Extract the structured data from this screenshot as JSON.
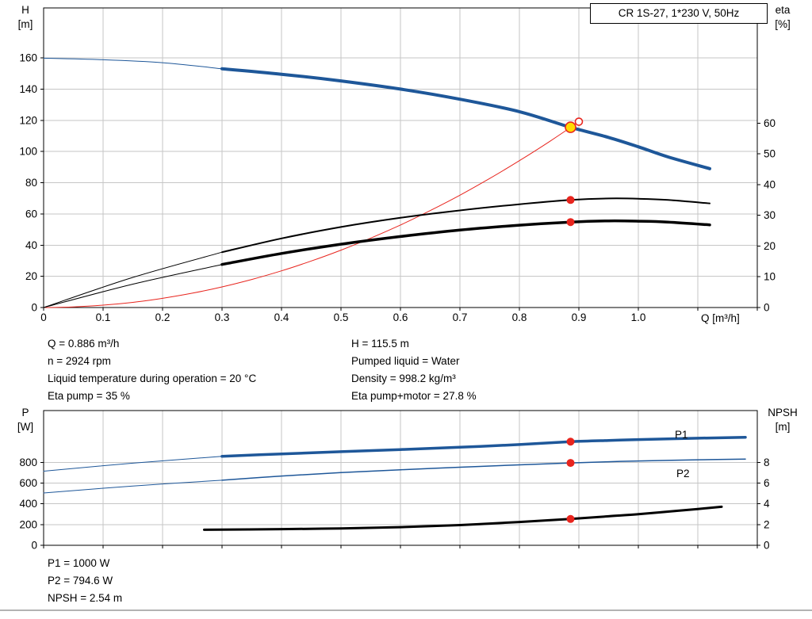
{
  "title_box": {
    "label": "CR 1S-27, 1*230 V, 50Hz"
  },
  "info_top": {
    "left": [
      "Q = 0.886 m³/h",
      "n = 2924 rpm",
      "Liquid temperature during operation = 20 °C",
      "Eta pump = 35 %"
    ],
    "right": [
      "H = 115.5 m",
      "Pumped liquid = Water",
      "Density = 998.2 kg/m³",
      "Eta pump+motor = 27.8 %"
    ]
  },
  "info_bottom": [
    "P1 = 1000 W",
    "P2 = 794.6 W",
    "NPSH = 2.54 m"
  ],
  "colors": {
    "curve_blue": "#1e5799",
    "curve_red": "#e8251e",
    "curve_black": "#000000",
    "marker_yellow": "#ffdb00",
    "grid": "#c6c6c6",
    "frame": "#000000"
  },
  "chart_data": [
    {
      "type": "line",
      "panel": "top",
      "title": "CR 1S-27, 1*230 V, 50Hz",
      "x": {
        "label": "Q [m³/h]",
        "min": 0,
        "max": 1.2,
        "tick_step": 0.1,
        "tick_labels": [
          "0",
          "0.1",
          "0.2",
          "0.3",
          "0.4",
          "0.5",
          "0.6",
          "0.7",
          "0.8",
          "0.9",
          "1.0"
        ]
      },
      "y_left": {
        "title": "H",
        "unit": "[m]",
        "min": 0,
        "max": 192,
        "ticks": [
          0,
          20,
          40,
          60,
          80,
          100,
          120,
          140,
          160
        ]
      },
      "y_right": {
        "title": "eta",
        "unit": "[%]",
        "min": 0,
        "max": 97.5,
        "ticks": [
          0,
          10,
          20,
          30,
          40,
          50,
          60
        ]
      },
      "duty_point": {
        "q": 0.886,
        "h": 115.5,
        "eta_pump": 35,
        "eta_pump_motor": 27.8
      },
      "series": [
        {
          "name": "system-curve",
          "axis": "left",
          "color": "#e8251e",
          "width": 1,
          "points": [
            [
              0,
              0
            ],
            [
              0.05,
              0.4
            ],
            [
              0.1,
              1.5
            ],
            [
              0.15,
              3.3
            ],
            [
              0.2,
              5.9
            ],
            [
              0.25,
              9.2
            ],
            [
              0.3,
              13.2
            ],
            [
              0.35,
              18
            ],
            [
              0.4,
              23.5
            ],
            [
              0.45,
              29.8
            ],
            [
              0.5,
              36.8
            ],
            [
              0.55,
              44.5
            ],
            [
              0.6,
              52.9
            ],
            [
              0.65,
              62.1
            ],
            [
              0.7,
              72
            ],
            [
              0.75,
              82.7
            ],
            [
              0.8,
              94.1
            ],
            [
              0.85,
              106.2
            ],
            [
              0.9,
              119.1
            ]
          ]
        },
        {
          "name": "eta-pump-lowflow",
          "axis": "right",
          "color": "#000000",
          "width": 1,
          "points": [
            [
              0,
              0
            ],
            [
              0.15,
              9.8
            ],
            [
              0.3,
              18
            ]
          ]
        },
        {
          "name": "eta-pump-motor-lowflow",
          "axis": "right",
          "color": "#000000",
          "width": 1,
          "points": [
            [
              0,
              0
            ],
            [
              0.15,
              7.6
            ],
            [
              0.3,
              14
            ]
          ]
        },
        {
          "name": "eta-pump",
          "axis": "right",
          "color": "#000000",
          "width": 2,
          "points": [
            [
              0.3,
              18
            ],
            [
              0.4,
              22.5
            ],
            [
              0.5,
              26.2
            ],
            [
              0.6,
              29.2
            ],
            [
              0.7,
              31.6
            ],
            [
              0.8,
              33.6
            ],
            [
              0.886,
              35
            ],
            [
              0.95,
              35.5
            ],
            [
              1,
              35.4
            ],
            [
              1.05,
              35
            ],
            [
              1.12,
              33.9
            ]
          ]
        },
        {
          "name": "eta-pump-motor",
          "axis": "right",
          "color": "#000000",
          "width": 3.5,
          "points": [
            [
              0.3,
              14
            ],
            [
              0.4,
              17.6
            ],
            [
              0.5,
              20.6
            ],
            [
              0.6,
              23.1
            ],
            [
              0.7,
              25.2
            ],
            [
              0.8,
              26.8
            ],
            [
              0.886,
              27.8
            ],
            [
              0.95,
              28.2
            ],
            [
              1,
              28.1
            ],
            [
              1.05,
              27.8
            ],
            [
              1.12,
              26.9
            ]
          ]
        },
        {
          "name": "head-curve-lowflow",
          "axis": "left",
          "color": "#1e5799",
          "width": 1,
          "points": [
            [
              0,
              159.8
            ],
            [
              0.1,
              158.8
            ],
            [
              0.2,
              156.9
            ],
            [
              0.3,
              153
            ]
          ]
        },
        {
          "name": "head-curve",
          "axis": "left",
          "color": "#1e5799",
          "width": 4,
          "points": [
            [
              0.3,
              153
            ],
            [
              0.4,
              149.5
            ],
            [
              0.5,
              145.2
            ],
            [
              0.6,
              140
            ],
            [
              0.7,
              133.5
            ],
            [
              0.8,
              125.5
            ],
            [
              0.886,
              115.5
            ],
            [
              0.95,
              109
            ],
            [
              1,
              103
            ],
            [
              1.05,
              96.5
            ],
            [
              1.12,
              89
            ]
          ]
        }
      ],
      "markers": [
        {
          "shape": "circle-open-red",
          "axis": "left",
          "q": 0.9,
          "v": 119.1
        },
        {
          "shape": "dot-yellow",
          "axis": "left",
          "q": 0.886,
          "v": 115.5
        },
        {
          "shape": "dot-red",
          "axis": "right",
          "q": 0.886,
          "v": 35
        },
        {
          "shape": "dot-red",
          "axis": "right",
          "q": 0.886,
          "v": 27.8
        }
      ]
    },
    {
      "type": "line",
      "panel": "bottom",
      "x": {
        "label": "",
        "min": 0,
        "max": 1.2,
        "tick_step": 0.1,
        "tick_labels": []
      },
      "y_left": {
        "title": "P",
        "unit": "[W]",
        "min": 0,
        "max": 1300,
        "ticks": [
          0,
          200,
          400,
          600,
          800
        ]
      },
      "y_right": {
        "title": "NPSH",
        "unit": "[m]",
        "min": 0,
        "max": 13,
        "ticks": [
          0,
          2,
          4,
          6,
          8
        ]
      },
      "duty_point": {
        "q": 0.886,
        "p1": 1000,
        "p2": 794.6,
        "npsh": 2.54
      },
      "series": [
        {
          "name": "P1-lowflow",
          "axis": "left",
          "color": "#1e5799",
          "width": 1,
          "points": [
            [
              0,
              715
            ],
            [
              0.15,
              792
            ],
            [
              0.3,
              858
            ]
          ]
        },
        {
          "name": "P2-lowflow",
          "axis": "left",
          "color": "#1e5799",
          "width": 1,
          "points": [
            [
              0,
              505
            ],
            [
              0.15,
              572
            ],
            [
              0.3,
              628
            ]
          ]
        },
        {
          "name": "P2",
          "axis": "left",
          "color": "#1e5799",
          "width": 1.5,
          "points": [
            [
              0.3,
              628
            ],
            [
              0.4,
              668
            ],
            [
              0.5,
              701
            ],
            [
              0.6,
              729
            ],
            [
              0.7,
              753
            ],
            [
              0.8,
              776
            ],
            [
              0.886,
              794.6
            ],
            [
              0.95,
              806
            ],
            [
              1,
              814
            ],
            [
              1.1,
              825
            ],
            [
              1.18,
              831
            ]
          ]
        },
        {
          "name": "P1",
          "axis": "left",
          "color": "#1e5799",
          "width": 3.5,
          "points": [
            [
              0.3,
              858
            ],
            [
              0.4,
              882
            ],
            [
              0.5,
              903
            ],
            [
              0.6,
              924
            ],
            [
              0.7,
              946
            ],
            [
              0.8,
              972
            ],
            [
              0.886,
              1000
            ],
            [
              0.95,
              1012
            ],
            [
              1,
              1020
            ],
            [
              1.1,
              1033
            ],
            [
              1.18,
              1042
            ]
          ]
        },
        {
          "name": "NPSH",
          "axis": "right",
          "color": "#000000",
          "width": 3,
          "points": [
            [
              0.27,
              1.5
            ],
            [
              0.4,
              1.56
            ],
            [
              0.5,
              1.63
            ],
            [
              0.6,
              1.75
            ],
            [
              0.7,
              1.95
            ],
            [
              0.8,
              2.25
            ],
            [
              0.886,
              2.54
            ],
            [
              0.95,
              2.8
            ],
            [
              1,
              3
            ],
            [
              1.05,
              3.25
            ],
            [
              1.1,
              3.5
            ],
            [
              1.14,
              3.72
            ]
          ]
        }
      ],
      "markers": [
        {
          "shape": "dot-red",
          "axis": "left",
          "q": 0.886,
          "v": 1000
        },
        {
          "shape": "dot-red",
          "axis": "left",
          "q": 0.886,
          "v": 794.6
        },
        {
          "shape": "dot-red",
          "axis": "right",
          "q": 0.886,
          "v": 2.54
        }
      ],
      "series_labels": [
        {
          "text": "P1"
        },
        {
          "text": "P2"
        }
      ]
    }
  ]
}
